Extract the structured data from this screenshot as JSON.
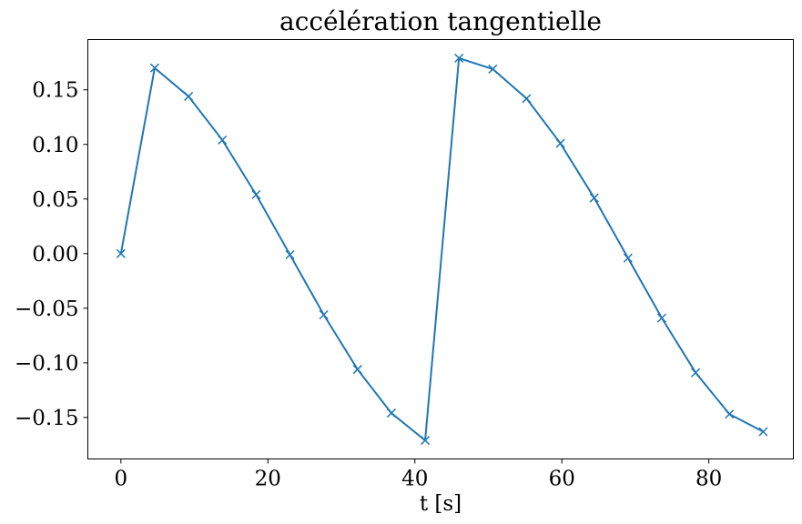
{
  "chart_data": {
    "type": "line",
    "title": "accélération tangentielle",
    "xlabel": "t [s]",
    "ylabel": "",
    "xlim": [
      -4.5,
      91.5
    ],
    "ylim": [
      -0.188,
      0.196
    ],
    "xticks": [
      0,
      20,
      40,
      60,
      80
    ],
    "xtick_labels": [
      "0",
      "20",
      "40",
      "60",
      "80"
    ],
    "yticks": [
      0.15,
      0.1,
      0.05,
      0.0,
      -0.05,
      -0.1,
      -0.15
    ],
    "ytick_labels": [
      "0.15",
      "0.10",
      "0.05",
      "0.00",
      "−0.05",
      "−0.10",
      "−0.15"
    ],
    "grid": false,
    "series": [
      {
        "color": "#1f77b4",
        "marker": "x",
        "x": [
          0,
          4.6,
          9.2,
          13.8,
          18.4,
          23.0,
          27.6,
          32.2,
          36.8,
          41.4,
          46.0,
          50.6,
          55.2,
          59.8,
          64.4,
          69.0,
          73.6,
          78.2,
          82.8,
          87.4
        ],
        "y": [
          0.0,
          0.17,
          0.144,
          0.104,
          0.054,
          -0.001,
          -0.056,
          -0.106,
          -0.146,
          -0.171,
          0.179,
          0.169,
          0.142,
          0.101,
          0.051,
          -0.004,
          -0.059,
          -0.109,
          -0.147,
          -0.163
        ]
      }
    ]
  }
}
